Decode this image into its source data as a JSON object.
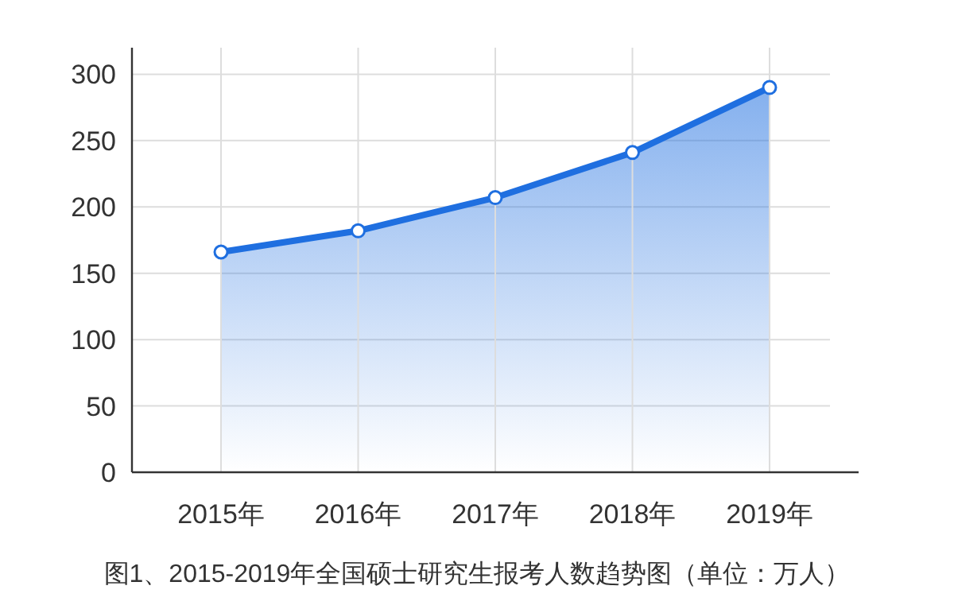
{
  "chart_data": {
    "type": "area",
    "title": "图1、2015-2019年全国硕士研究生报考人数趋势图（单位：万人）",
    "categories": [
      "2015年",
      "2016年",
      "2017年",
      "2018年",
      "2019年"
    ],
    "series": [
      {
        "color": "#1f6fe0",
        "values": [
          166,
          182,
          207,
          241,
          290
        ]
      }
    ],
    "ylim": [
      0,
      320
    ],
    "yticks": [
      0,
      50,
      100,
      150,
      200,
      250,
      300
    ],
    "grid": true,
    "marker": "circle",
    "line_style": "solid"
  }
}
